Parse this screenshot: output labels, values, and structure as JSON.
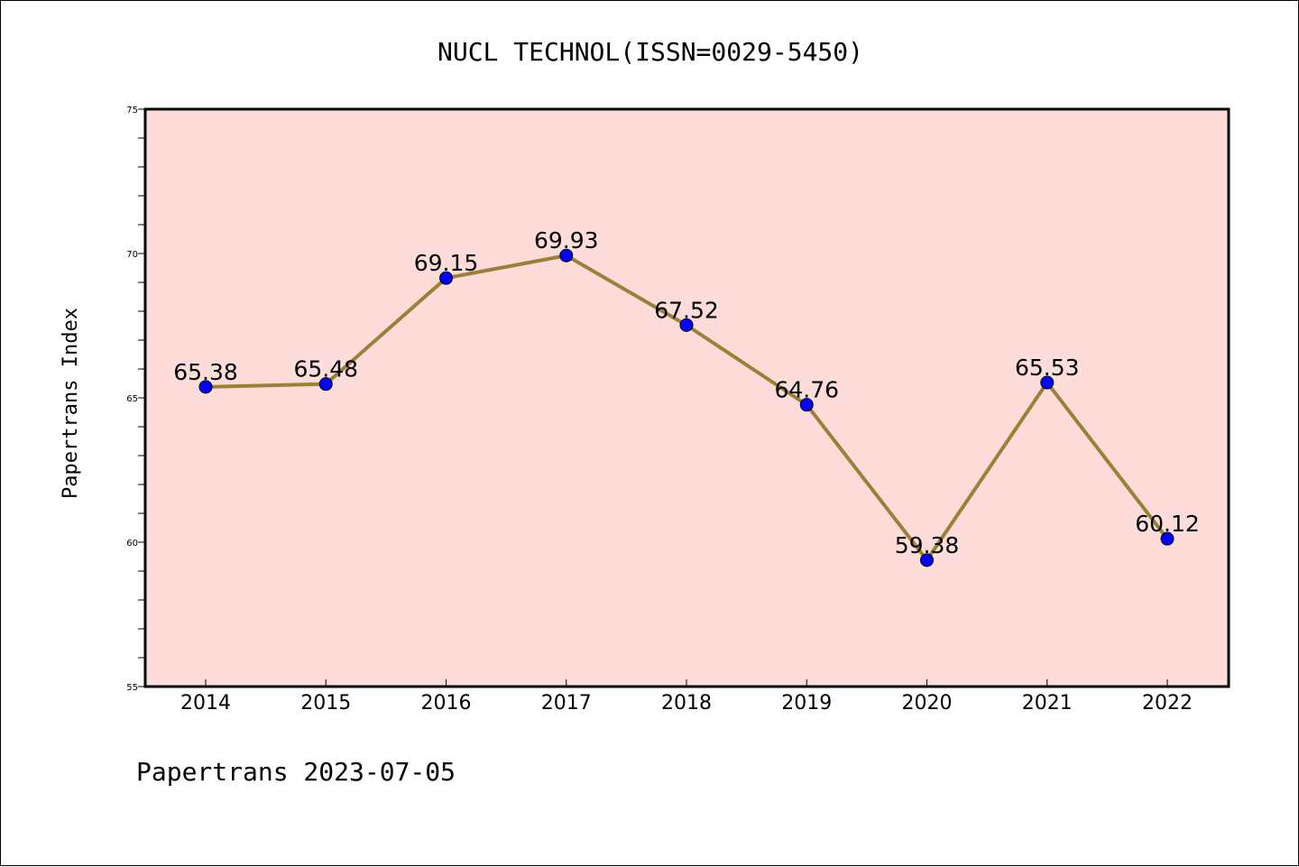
{
  "chart_data": {
    "type": "line",
    "title": "NUCL TECHNOL(ISSN=0029-5450)",
    "xlabel": "",
    "ylabel": "Papertrans Index",
    "categories": [
      "2014",
      "2015",
      "2016",
      "2017",
      "2018",
      "2019",
      "2020",
      "2021",
      "2022"
    ],
    "values": [
      65.38,
      65.48,
      69.15,
      69.93,
      67.52,
      64.76,
      59.38,
      65.53,
      60.12
    ],
    "data_labels": [
      "65.38",
      "65.48",
      "69.15",
      "69.93",
      "67.52",
      "64.76",
      "59.38",
      "65.53",
      "60.12"
    ],
    "ylim": [
      55,
      75
    ],
    "yticks": [
      "55",
      "60",
      "65",
      "70",
      "75"
    ],
    "grid": false,
    "legend": "none",
    "colors": {
      "line": "#9b8038",
      "marker": "#0000ff",
      "plot_background": "#fddcd9",
      "axes": "#000000"
    }
  },
  "footer": {
    "text": "Papertrans 2023-07-05"
  }
}
